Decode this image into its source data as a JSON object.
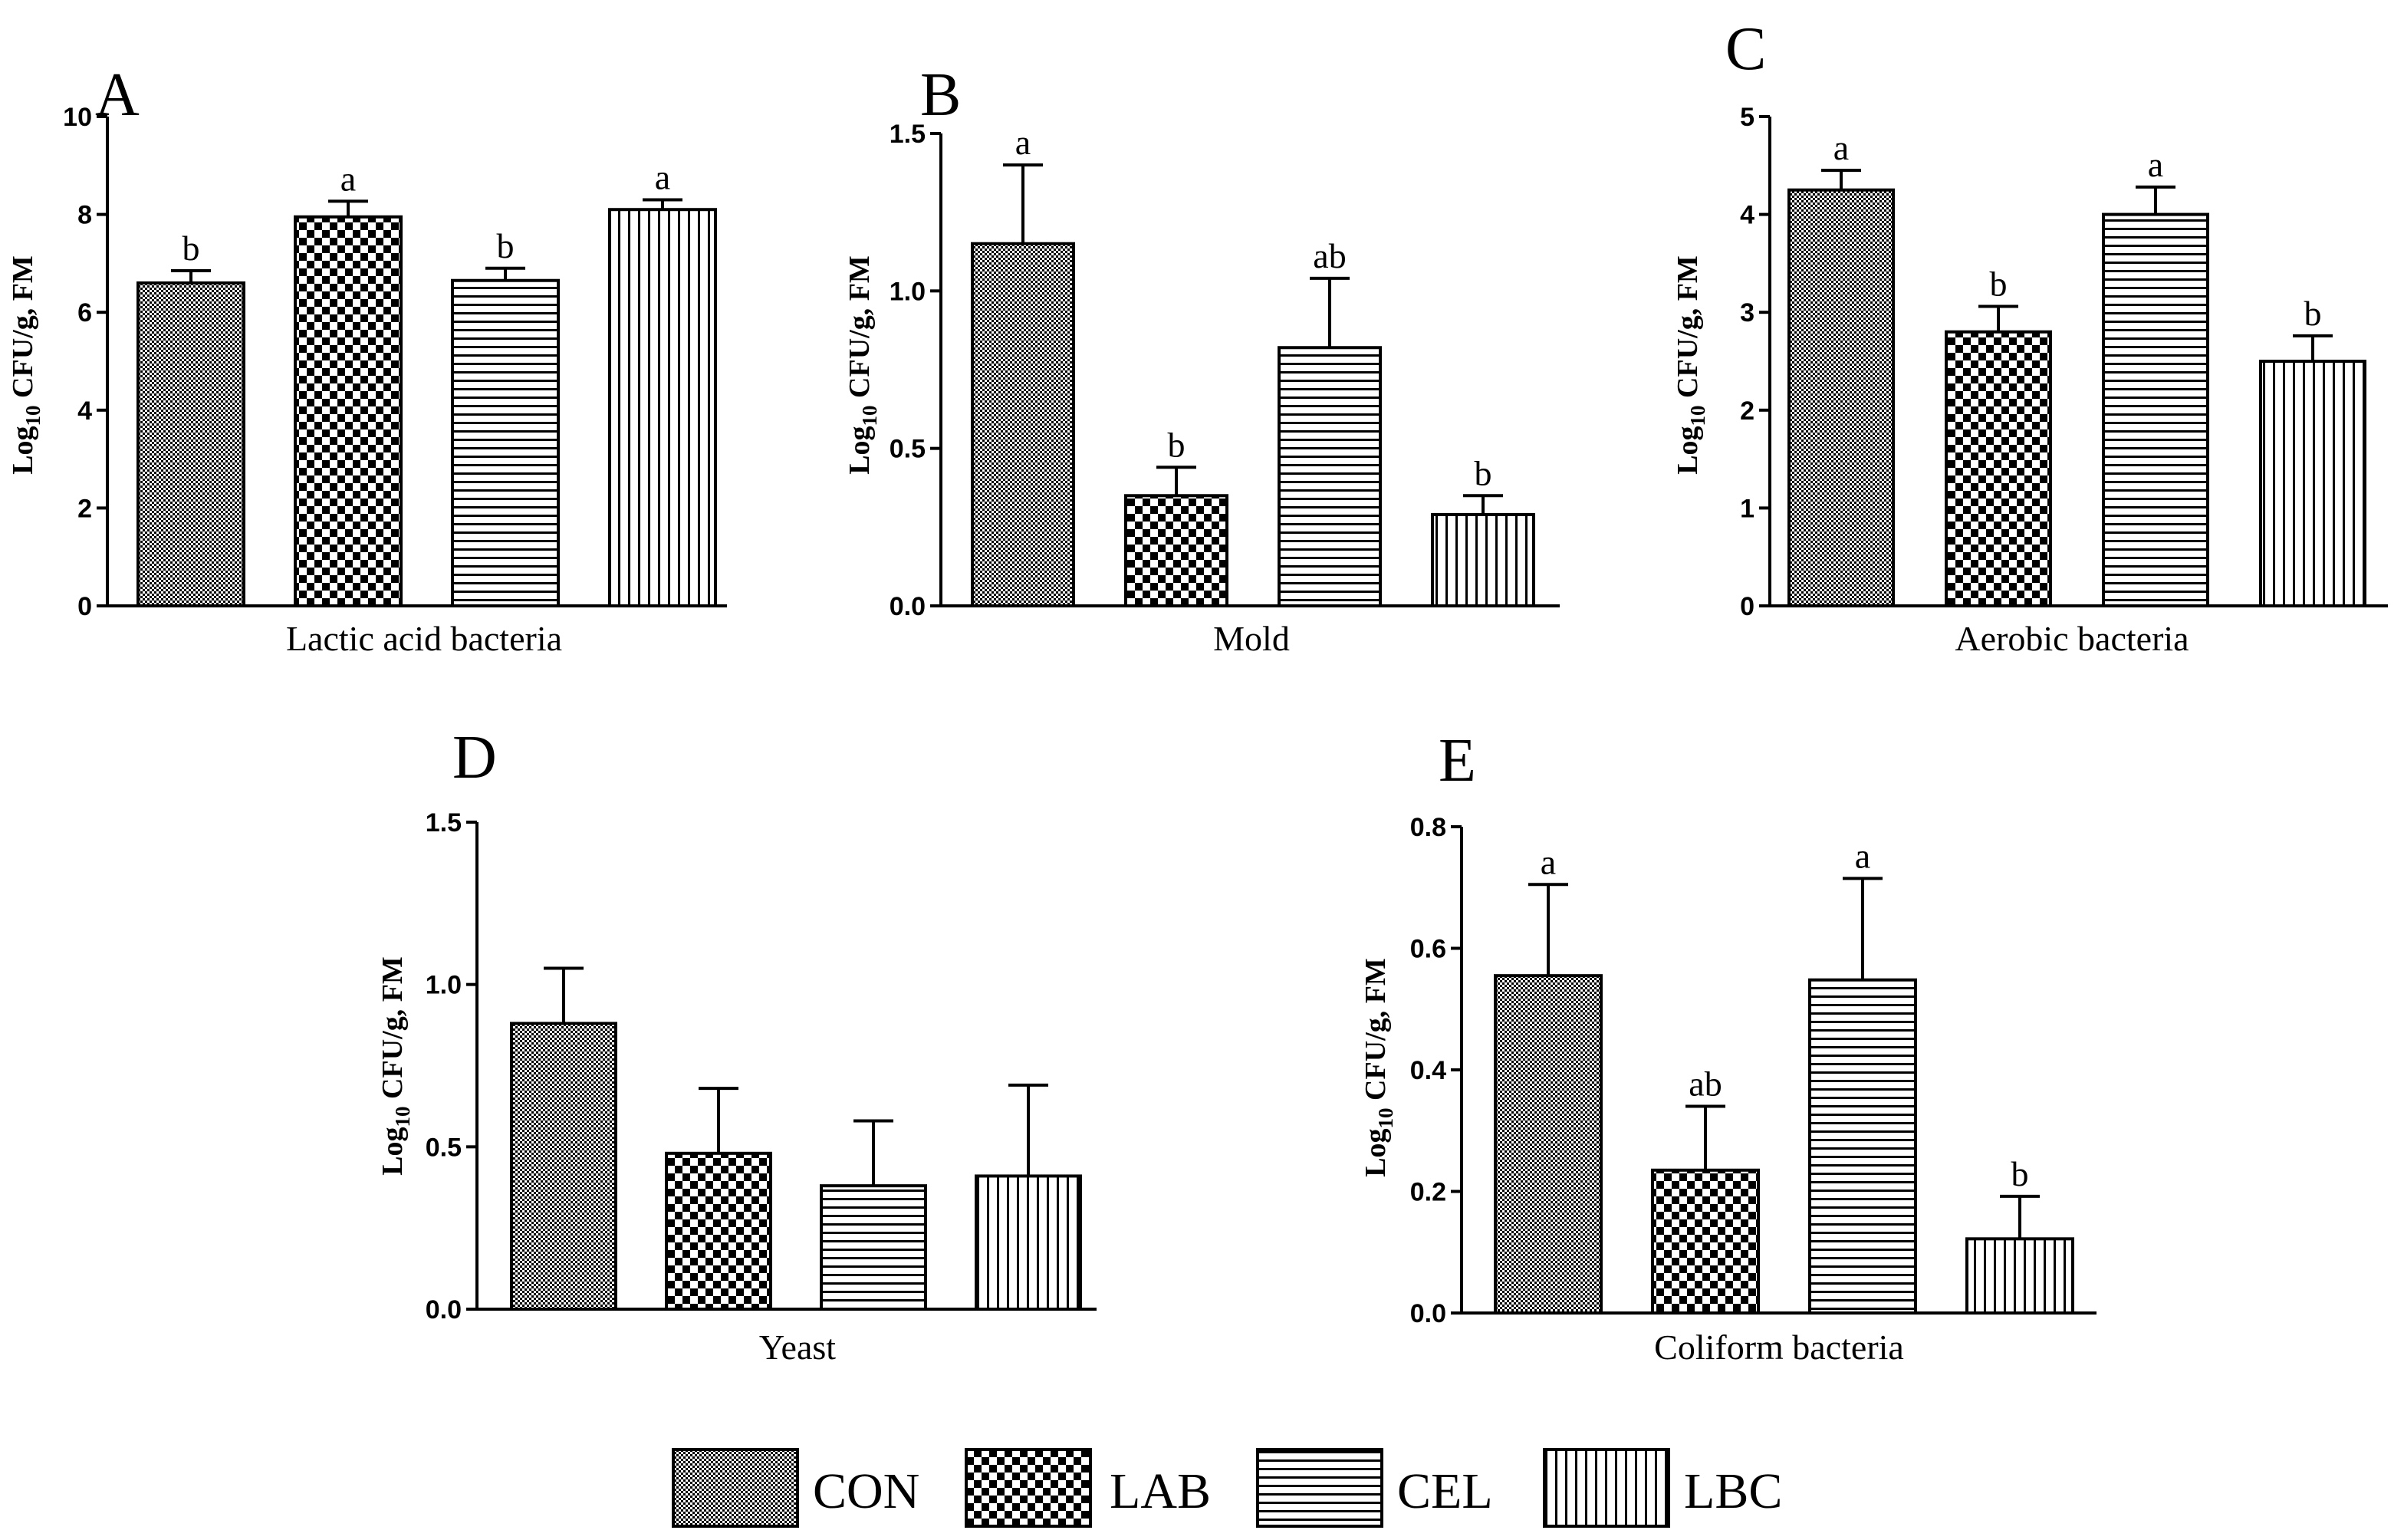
{
  "chart_data": [
    {
      "type": "bar",
      "panel": "A",
      "xlabel": "Lactic acid bacteria",
      "ylabel_prefix": "Log",
      "ylabel_sub": "10",
      "ylabel_suffix": " CFU/g, FM",
      "ylim": [
        0,
        10
      ],
      "ticks": [
        0,
        2,
        4,
        6,
        8,
        10
      ],
      "tick_labels": [
        "0",
        "2",
        "4",
        "6",
        "8",
        "10"
      ],
      "series": [
        {
          "name": "CON",
          "value": 6.6,
          "error": 0.25,
          "letter": "b"
        },
        {
          "name": "LAB",
          "value": 7.95,
          "error": 0.32,
          "letter": "a"
        },
        {
          "name": "CEL",
          "value": 6.65,
          "error": 0.25,
          "letter": "b"
        },
        {
          "name": "LBC",
          "value": 8.1,
          "error": 0.2,
          "letter": "a"
        }
      ]
    },
    {
      "type": "bar",
      "panel": "B",
      "xlabel": "Mold",
      "ylabel_prefix": "Log",
      "ylabel_sub": "10",
      "ylabel_suffix": " CFU/g, FM",
      "ylim": [
        0,
        1.5
      ],
      "ticks": [
        0,
        0.5,
        1.0,
        1.5
      ],
      "tick_labels": [
        "0.0",
        "0.5",
        "1.0",
        "1.5"
      ],
      "series": [
        {
          "name": "CON",
          "value": 1.15,
          "error": 0.25,
          "letter": "a"
        },
        {
          "name": "LAB",
          "value": 0.35,
          "error": 0.09,
          "letter": "b"
        },
        {
          "name": "CEL",
          "value": 0.82,
          "error": 0.22,
          "letter": "ab"
        },
        {
          "name": "LBC",
          "value": 0.29,
          "error": 0.06,
          "letter": "b"
        }
      ]
    },
    {
      "type": "bar",
      "panel": "C",
      "xlabel": "Aerobic bacteria",
      "ylabel_prefix": "Log",
      "ylabel_sub": "10",
      "ylabel_suffix": " CFU/g, FM",
      "ylim": [
        0,
        5
      ],
      "ticks": [
        0,
        1,
        2,
        3,
        4,
        5
      ],
      "tick_labels": [
        "0",
        "1",
        "2",
        "3",
        "4",
        "5"
      ],
      "series": [
        {
          "name": "CON",
          "value": 4.25,
          "error": 0.2,
          "letter": "a"
        },
        {
          "name": "LAB",
          "value": 2.8,
          "error": 0.26,
          "letter": "b"
        },
        {
          "name": "CEL",
          "value": 4.0,
          "error": 0.28,
          "letter": "a"
        },
        {
          "name": "LBC",
          "value": 2.5,
          "error": 0.26,
          "letter": "b"
        }
      ]
    },
    {
      "type": "bar",
      "panel": "D",
      "xlabel": "Yeast",
      "ylabel_prefix": "Log",
      "ylabel_sub": "10",
      "ylabel_suffix": " CFU/g, FM",
      "ylim": [
        0,
        1.5
      ],
      "ticks": [
        0,
        0.5,
        1.0,
        1.5
      ],
      "tick_labels": [
        "0.0",
        "0.5",
        "1.0",
        "1.5"
      ],
      "series": [
        {
          "name": "CON",
          "value": 0.88,
          "error": 0.17,
          "letter": ""
        },
        {
          "name": "LAB",
          "value": 0.48,
          "error": 0.2,
          "letter": ""
        },
        {
          "name": "CEL",
          "value": 0.38,
          "error": 0.2,
          "letter": ""
        },
        {
          "name": "LBC",
          "value": 0.41,
          "error": 0.28,
          "letter": ""
        }
      ]
    },
    {
      "type": "bar",
      "panel": "E",
      "xlabel": "Coliform bacteria",
      "ylabel_prefix": "Log",
      "ylabel_sub": "10",
      "ylabel_suffix": " CFU/g, FM",
      "ylim": [
        0,
        0.8
      ],
      "ticks": [
        0,
        0.2,
        0.4,
        0.6,
        0.8
      ],
      "tick_labels": [
        "0.0",
        "0.2",
        "0.4",
        "0.6",
        "0.8"
      ],
      "series": [
        {
          "name": "CON",
          "value": 0.555,
          "error": 0.15,
          "letter": "a"
        },
        {
          "name": "LAB",
          "value": 0.235,
          "error": 0.105,
          "letter": "ab"
        },
        {
          "name": "CEL",
          "value": 0.548,
          "error": 0.167,
          "letter": "a"
        },
        {
          "name": "LBC",
          "value": 0.122,
          "error": 0.07,
          "letter": "b"
        }
      ]
    }
  ],
  "legend": {
    "items": [
      {
        "name": "CON",
        "label": "CON"
      },
      {
        "name": "LAB",
        "label": "LAB"
      },
      {
        "name": "CEL",
        "label": "CEL"
      },
      {
        "name": "LBC",
        "label": "LBC"
      }
    ]
  }
}
